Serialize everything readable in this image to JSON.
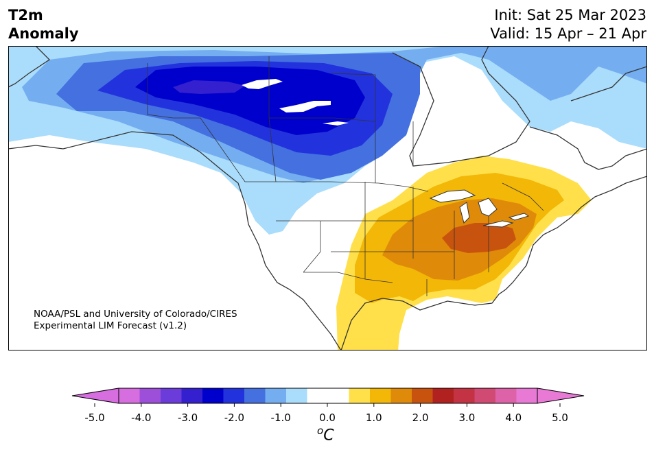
{
  "title": {
    "line1": "T2m",
    "line2": "Anomaly"
  },
  "init": "Init: Sat 25 Mar 2023",
  "valid": "Valid: 15 Apr – 21 Apr",
  "credit": {
    "line1": "NOAA/PSL and University of Colorado/CIRES",
    "line2": "Experimental LIM Forecast (v1.2)"
  },
  "colorbar": {
    "ticks": [
      "-5.0",
      "-4.0",
      "-3.0",
      "-2.0",
      "-1.0",
      "0.0",
      "1.0",
      "2.0",
      "3.0",
      "4.0",
      "5.0"
    ],
    "colors": [
      "#d66ee0",
      "#9e4fd9",
      "#6b3cd9",
      "#3520cf",
      "#0000cc",
      "#2233dd",
      "#4470e0",
      "#74aef0",
      "#aadcfc",
      "#ffffff",
      "#ffffff",
      "#ffe04a",
      "#f2b707",
      "#e08a0a",
      "#c8530f",
      "#b0211f",
      "#c43343",
      "#d04a74",
      "#de62a8",
      "#e87ad6"
    ],
    "under_color": "#d66ee0",
    "over_color": "#e87ad6",
    "unit_base": "o",
    "unit_letter": "C"
  },
  "colors": {
    "land_neutral": "#ffffff",
    "outline": "#333333"
  }
}
